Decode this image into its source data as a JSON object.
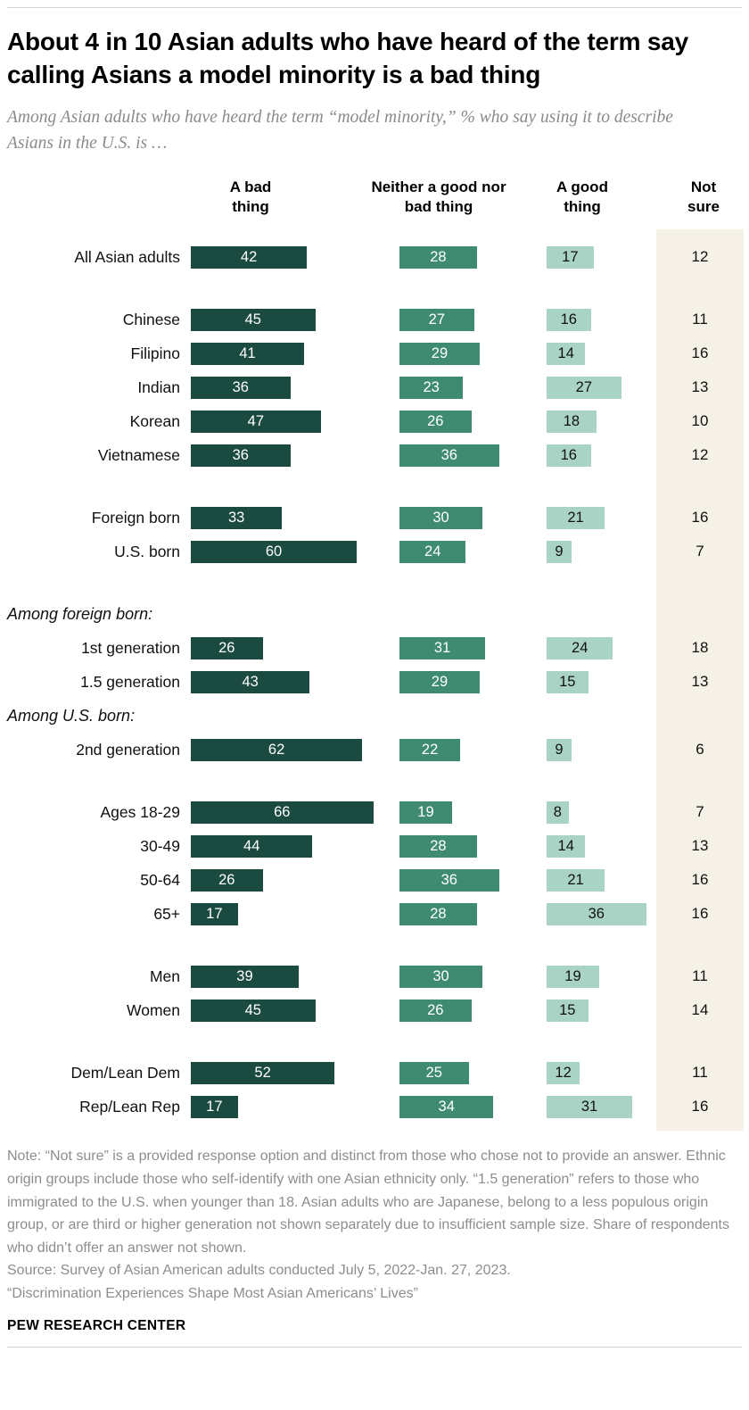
{
  "title": "About 4 in 10 Asian adults who have heard of the term say calling Asians a model minority is a bad thing",
  "subtitle": "Among Asian adults who have heard the term “model minority,” % who say using it to describe Asians in the U.S. is …",
  "chart_data": {
    "type": "bar",
    "orientation": "horizontal",
    "unit": "%",
    "columns": [
      "A bad thing",
      "Neither a good nor bad thing",
      "A good thing",
      "Not sure"
    ],
    "colors": {
      "bad": "#1a4a40",
      "neither": "#3e8b72",
      "good": "#a9d3c5",
      "not_sure_bg": "#f5f1e6"
    },
    "rows": [
      {
        "type": "data",
        "label": "All Asian adults",
        "values": [
          42,
          28,
          17,
          12
        ]
      },
      {
        "type": "gap"
      },
      {
        "type": "data",
        "label": "Chinese",
        "values": [
          45,
          27,
          16,
          11
        ]
      },
      {
        "type": "data",
        "label": "Filipino",
        "values": [
          41,
          29,
          14,
          16
        ]
      },
      {
        "type": "data",
        "label": "Indian",
        "values": [
          36,
          23,
          27,
          13
        ]
      },
      {
        "type": "data",
        "label": "Korean",
        "values": [
          47,
          26,
          18,
          10
        ]
      },
      {
        "type": "data",
        "label": "Vietnamese",
        "values": [
          36,
          36,
          16,
          12
        ]
      },
      {
        "type": "gap"
      },
      {
        "type": "data",
        "label": "Foreign born",
        "values": [
          33,
          30,
          21,
          16
        ]
      },
      {
        "type": "data",
        "label": "U.S. born",
        "values": [
          60,
          24,
          9,
          7
        ]
      },
      {
        "type": "gap"
      },
      {
        "type": "section",
        "label": "Among foreign born:"
      },
      {
        "type": "data",
        "label": "1st generation",
        "values": [
          26,
          31,
          24,
          18
        ]
      },
      {
        "type": "data",
        "label": "1.5 generation",
        "values": [
          43,
          29,
          15,
          13
        ]
      },
      {
        "type": "section",
        "label": "Among U.S. born:"
      },
      {
        "type": "data",
        "label": "2nd generation",
        "values": [
          62,
          22,
          9,
          6
        ]
      },
      {
        "type": "gap"
      },
      {
        "type": "data",
        "label": "Ages 18-29",
        "values": [
          66,
          19,
          8,
          7
        ]
      },
      {
        "type": "data",
        "label": "30-49",
        "values": [
          44,
          28,
          14,
          13
        ]
      },
      {
        "type": "data",
        "label": "50-64",
        "values": [
          26,
          36,
          21,
          16
        ]
      },
      {
        "type": "data",
        "label": "65+",
        "values": [
          17,
          28,
          36,
          16
        ]
      },
      {
        "type": "gap"
      },
      {
        "type": "data",
        "label": "Men",
        "values": [
          39,
          30,
          19,
          11
        ]
      },
      {
        "type": "data",
        "label": "Women",
        "values": [
          45,
          26,
          15,
          14
        ]
      },
      {
        "type": "gap"
      },
      {
        "type": "data",
        "label": "Dem/Lean Dem",
        "values": [
          52,
          25,
          12,
          11
        ]
      },
      {
        "type": "data",
        "label": "Rep/Lean Rep",
        "values": [
          17,
          34,
          31,
          16
        ]
      }
    ]
  },
  "notes": {
    "note": "Note: “Not sure” is a provided response option and distinct from those who chose not to provide an answer. Ethnic origin groups include those who self-identify with one Asian ethnicity only. “1.5 generation” refers to those who immigrated to the U.S. when younger than 18. Asian adults who are Japanese, belong to a less populous origin group, or are third or higher generation not shown separately due to insufficient sample size. Share of respondents who didn’t offer an answer not shown.",
    "source": "Source: Survey of Asian American adults conducted July 5, 2022-Jan. 27, 2023.",
    "citation": "“Discrimination Experiences Shape Most Asian Americans’ Lives”"
  },
  "footer": "PEW RESEARCH CENTER"
}
